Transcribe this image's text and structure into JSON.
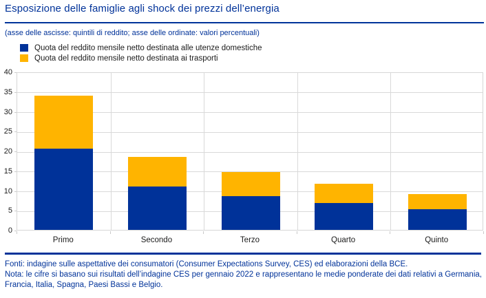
{
  "header": {
    "title": "Esposizione delle famiglie agli shock dei prezzi dell’energia",
    "subtitle": "(asse delle ascisse: quintili di reddito; asse delle ordinate: valori percentuali)"
  },
  "legend": [
    {
      "label": "Quota del reddito mensile netto destinata alle utenze domestiche",
      "color": "#003299"
    },
    {
      "label": "Quota del reddito mensile netto destinata ai trasporti",
      "color": "#FFB400"
    }
  ],
  "chart_data": {
    "type": "bar",
    "stacked": true,
    "title": "Esposizione delle famiglie agli shock dei prezzi dell’energia",
    "xlabel": "quintili di reddito",
    "ylabel": "valori percentuali",
    "categories": [
      "Primo",
      "Secondo",
      "Terzo",
      "Quarto",
      "Quinto"
    ],
    "series": [
      {
        "name": "Quota del reddito mensile netto destinata alle utenze domestiche",
        "color": "#003299",
        "values": [
          20.6,
          10.9,
          8.6,
          6.8,
          5.3
        ]
      },
      {
        "name": "Quota del reddito mensile netto destinata ai trasporti",
        "color": "#FFB400",
        "values": [
          13.4,
          7.5,
          6.0,
          4.9,
          3.8
        ]
      }
    ],
    "ylim": [
      0,
      40
    ],
    "ytick_step": 5,
    "yticks": [
      0,
      5,
      10,
      15,
      20,
      25,
      30,
      35,
      40
    ],
    "grid": true,
    "legend_position": "top-left"
  },
  "footer": {
    "sources": "Fonti: indagine sulle aspettative dei consumatori (Consumer Expectations Survey, CES) ed elaborazioni della BCE.",
    "note": "Nota: le cifre si basano sui risultati dell’indagine CES per gennaio 2022 e rappresentano le medie ponderate dei dati relativi a Germania, Francia, Italia, Spagna, Paesi Bassi e Belgio."
  },
  "colors": {
    "accent": "#003299",
    "series_utilities": "#003299",
    "series_transport": "#FFB400",
    "gridline": "#D9D9D9",
    "axis_text": "#1A1A1A"
  }
}
